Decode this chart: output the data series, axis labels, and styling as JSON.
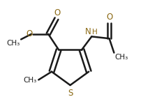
{
  "bg_color": "#ffffff",
  "bond_color": "#1a1a1a",
  "heteroatom_color": "#8B6914",
  "line_width": 1.8,
  "font_size_atoms": 8.5,
  "font_size_small": 7.5,
  "xlim": [
    0.0,
    1.0
  ],
  "ylim": [
    0.0,
    1.0
  ]
}
